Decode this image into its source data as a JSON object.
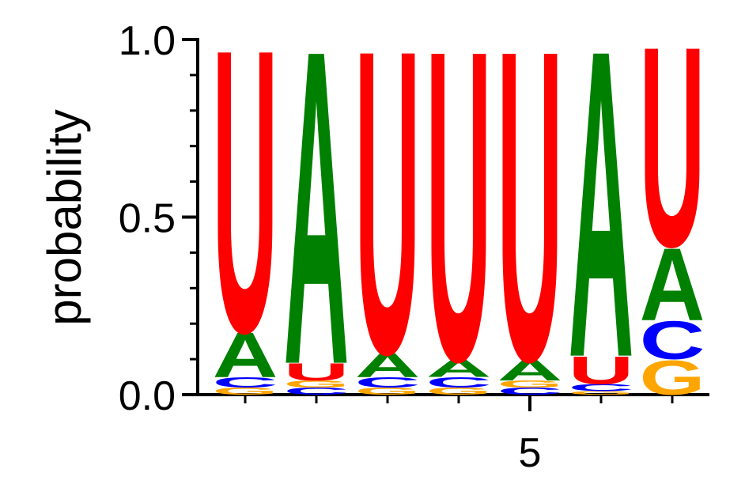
{
  "chart_data": {
    "type": "logo",
    "ylabel": "probability",
    "x": [
      1,
      2,
      3,
      4,
      5,
      6,
      7
    ],
    "xlim": [
      0.5,
      7.5
    ],
    "xticks": [
      5
    ],
    "ylim": [
      0,
      1
    ],
    "yticks": [
      {
        "value": 0,
        "label": "0.0"
      },
      {
        "value": 0.5,
        "label": "0.5"
      },
      {
        "value": 1,
        "label": "1.0"
      }
    ],
    "yminorticks": [
      0.1,
      0.2,
      0.3,
      0.4,
      0.6,
      0.7,
      0.8,
      0.9
    ],
    "series": [
      {
        "name": "A",
        "color": "#008000",
        "values": [
          0.13,
          0.91,
          0.07,
          0.05,
          0.06,
          0.89,
          0.21
        ]
      },
      {
        "name": "C",
        "color": "#0000ff",
        "values": [
          0.03,
          0.02,
          0.03,
          0.03,
          0.02,
          0.02,
          0.11
        ]
      },
      {
        "name": "G",
        "color": "#ffa500",
        "values": [
          0.02,
          0.02,
          0.02,
          0.02,
          0.02,
          0.01,
          0.1
        ]
      },
      {
        "name": "U",
        "color": "#ff0000",
        "values": [
          0.82,
          0.05,
          0.88,
          0.9,
          0.9,
          0.08,
          0.58
        ]
      }
    ]
  }
}
